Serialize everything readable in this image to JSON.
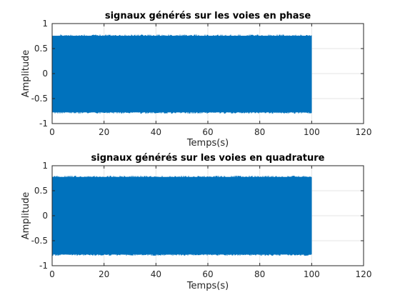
{
  "chart_data": [
    {
      "type": "line",
      "title": "signaux générés sur les voies en phase",
      "xlabel": "Temps(s)",
      "ylabel": "Amplitude",
      "xlim": [
        0,
        120
      ],
      "ylim": [
        -1,
        1
      ],
      "xticks": [
        "0",
        "20",
        "40",
        "60",
        "80",
        "100",
        "120"
      ],
      "yticks": [
        "1",
        "0.5",
        "0",
        "-0.5",
        "-1"
      ],
      "grid": true,
      "series": [
        {
          "x_range": [
            0,
            100
          ],
          "y_envelope": [
            -0.8,
            0.78
          ],
          "color": "#0072BD",
          "description": "dense oscillating signal"
        }
      ]
    },
    {
      "type": "line",
      "title": "signaux générés sur les voies en quadrature",
      "xlabel": "Temps(s)",
      "ylabel": "Amplitude",
      "xlim": [
        0,
        120
      ],
      "ylim": [
        -1,
        1
      ],
      "xticks": [
        "0",
        "20",
        "40",
        "60",
        "80",
        "100",
        "120"
      ],
      "yticks": [
        "1",
        "0.5",
        "0",
        "-0.5",
        "-1"
      ],
      "grid": true,
      "series": [
        {
          "x_range": [
            0,
            100
          ],
          "y_envelope": [
            -0.8,
            0.8
          ],
          "color": "#0072BD",
          "description": "dense oscillating signal"
        }
      ]
    }
  ]
}
